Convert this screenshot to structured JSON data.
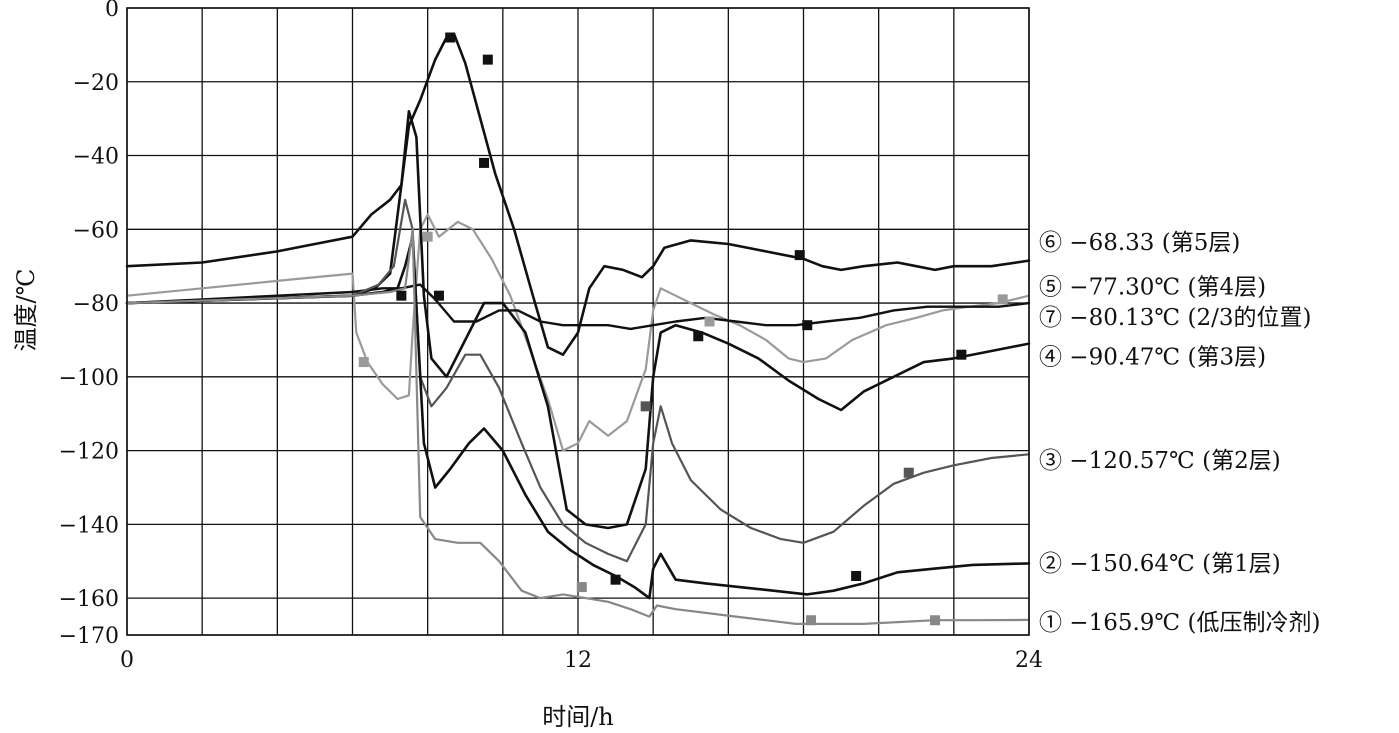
{
  "chart_data": {
    "type": "line",
    "xlabel": "时间/h",
    "ylabel": "温度/℃",
    "xlim": [
      0,
      24
    ],
    "ylim": [
      -170,
      0
    ],
    "x_ticks": [
      0,
      12,
      24
    ],
    "y_ticks": [
      0,
      -20,
      -40,
      -60,
      -80,
      -100,
      -120,
      -140,
      -160,
      -170
    ],
    "x_grid": [
      0,
      2,
      4,
      6,
      8,
      10,
      12,
      14,
      16,
      18,
      20,
      22,
      24
    ],
    "grid": true,
    "legend": "right",
    "series": [
      {
        "name": "⑥ −68.33    (第5层)",
        "color": "#111111",
        "width": 2.6,
        "points": [
          [
            0,
            -70
          ],
          [
            2,
            -69
          ],
          [
            4,
            -66
          ],
          [
            5,
            -64
          ],
          [
            6,
            -62
          ],
          [
            6.5,
            -56
          ],
          [
            7,
            -52
          ],
          [
            7.3,
            -48
          ],
          [
            7.5,
            -32
          ],
          [
            7.8,
            -25
          ],
          [
            8.2,
            -14
          ],
          [
            8.5,
            -8
          ],
          [
            8.7,
            -7
          ],
          [
            9,
            -15
          ],
          [
            9.4,
            -30
          ],
          [
            9.8,
            -45
          ],
          [
            10.3,
            -60
          ],
          [
            10.8,
            -78
          ],
          [
            11.2,
            -92
          ],
          [
            11.6,
            -94
          ],
          [
            12,
            -88
          ],
          [
            12.3,
            -76
          ],
          [
            12.7,
            -70
          ],
          [
            13.2,
            -71
          ],
          [
            13.7,
            -73
          ],
          [
            14,
            -70
          ],
          [
            14.3,
            -65
          ],
          [
            15,
            -63
          ],
          [
            16,
            -64
          ],
          [
            17,
            -66
          ],
          [
            18,
            -68
          ],
          [
            18.5,
            -70
          ],
          [
            19,
            -71
          ],
          [
            19.6,
            -70
          ],
          [
            20.5,
            -69
          ],
          [
            21,
            -70
          ],
          [
            21.5,
            -71
          ],
          [
            22,
            -70
          ],
          [
            23,
            -70
          ],
          [
            24,
            -68.5
          ]
        ]
      },
      {
        "name": "⑤ −77.30℃ (第4层)",
        "color": "#9a9a9a",
        "width": 2.2,
        "points": [
          [
            0,
            -78
          ],
          [
            2,
            -76
          ],
          [
            4,
            -74
          ],
          [
            6,
            -72
          ],
          [
            6.1,
            -88
          ],
          [
            6.4,
            -96
          ],
          [
            6.8,
            -102
          ],
          [
            7.2,
            -106
          ],
          [
            7.5,
            -105
          ],
          [
            7.6,
            -88
          ],
          [
            7.8,
            -60
          ],
          [
            8,
            -56
          ],
          [
            8.3,
            -62
          ],
          [
            8.8,
            -58
          ],
          [
            9.2,
            -60
          ],
          [
            9.7,
            -68
          ],
          [
            10.2,
            -78
          ],
          [
            10.7,
            -92
          ],
          [
            11.2,
            -106
          ],
          [
            11.6,
            -120
          ],
          [
            12,
            -118
          ],
          [
            12.3,
            -112
          ],
          [
            12.8,
            -116
          ],
          [
            13.3,
            -112
          ],
          [
            13.8,
            -98
          ],
          [
            14,
            -82
          ],
          [
            14.2,
            -76
          ],
          [
            14.6,
            -78
          ],
          [
            15,
            -80
          ],
          [
            15.6,
            -83
          ],
          [
            16.3,
            -86
          ],
          [
            17,
            -90
          ],
          [
            17.6,
            -95
          ],
          [
            18,
            -96
          ],
          [
            18.6,
            -95
          ],
          [
            19.3,
            -90
          ],
          [
            20.2,
            -86
          ],
          [
            21,
            -84
          ],
          [
            21.7,
            -82
          ],
          [
            22.4,
            -81
          ],
          [
            23.2,
            -80
          ],
          [
            24,
            -78
          ]
        ]
      },
      {
        "name": "⑦ −80.13℃ (2/3的位置)",
        "color": "#111111",
        "width": 2.4,
        "points": [
          [
            0,
            -80
          ],
          [
            2,
            -79
          ],
          [
            4,
            -78
          ],
          [
            6,
            -77
          ],
          [
            6.8,
            -76
          ],
          [
            7.3,
            -76
          ],
          [
            7.8,
            -75
          ],
          [
            8.2,
            -79
          ],
          [
            8.7,
            -85
          ],
          [
            9.3,
            -85
          ],
          [
            9.9,
            -82
          ],
          [
            10.4,
            -82
          ],
          [
            11,
            -85
          ],
          [
            11.6,
            -86
          ],
          [
            12.2,
            -86
          ],
          [
            12.8,
            -86
          ],
          [
            13.4,
            -87
          ],
          [
            14,
            -86
          ],
          [
            14.6,
            -85
          ],
          [
            15.4,
            -84
          ],
          [
            16.2,
            -85
          ],
          [
            17,
            -86
          ],
          [
            17.8,
            -86
          ],
          [
            18.6,
            -85
          ],
          [
            19.5,
            -84
          ],
          [
            20.4,
            -82
          ],
          [
            21.3,
            -81
          ],
          [
            22.3,
            -81
          ],
          [
            23.2,
            -81
          ],
          [
            24,
            -80
          ]
        ]
      },
      {
        "name": "④ −90.47℃ (第3层)",
        "color": "#111111",
        "width": 2.6,
        "points": [
          [
            0,
            -80
          ],
          [
            3,
            -79
          ],
          [
            6,
            -78
          ],
          [
            6.6,
            -76
          ],
          [
            7,
            -72
          ],
          [
            7.3,
            -48
          ],
          [
            7.5,
            -28
          ],
          [
            7.7,
            -35
          ],
          [
            7.9,
            -78
          ],
          [
            8.1,
            -95
          ],
          [
            8.5,
            -100
          ],
          [
            9,
            -90
          ],
          [
            9.5,
            -80
          ],
          [
            10,
            -80
          ],
          [
            10.6,
            -88
          ],
          [
            11.2,
            -108
          ],
          [
            11.7,
            -136
          ],
          [
            12.2,
            -140
          ],
          [
            12.8,
            -141
          ],
          [
            13.3,
            -140
          ],
          [
            13.8,
            -125
          ],
          [
            14,
            -100
          ],
          [
            14.2,
            -88
          ],
          [
            14.6,
            -86
          ],
          [
            15.3,
            -88
          ],
          [
            16,
            -91
          ],
          [
            16.8,
            -95
          ],
          [
            17.6,
            -101
          ],
          [
            18.4,
            -106
          ],
          [
            19,
            -109
          ],
          [
            19.6,
            -104
          ],
          [
            20.4,
            -100
          ],
          [
            21.2,
            -96
          ],
          [
            22,
            -95
          ],
          [
            23,
            -93
          ],
          [
            24,
            -91
          ]
        ]
      },
      {
        "name": "③ −120.57℃ (第2层)",
        "color": "#555555",
        "width": 2.2,
        "points": [
          [
            0,
            -80
          ],
          [
            3,
            -79
          ],
          [
            6,
            -78
          ],
          [
            6.7,
            -75
          ],
          [
            7.1,
            -70
          ],
          [
            7.4,
            -52
          ],
          [
            7.6,
            -60
          ],
          [
            7.8,
            -100
          ],
          [
            8.1,
            -108
          ],
          [
            8.5,
            -103
          ],
          [
            9,
            -94
          ],
          [
            9.4,
            -94
          ],
          [
            9.9,
            -103
          ],
          [
            10.5,
            -118
          ],
          [
            11,
            -130
          ],
          [
            11.6,
            -140
          ],
          [
            12.2,
            -145
          ],
          [
            12.8,
            -148
          ],
          [
            13.3,
            -150
          ],
          [
            13.8,
            -140
          ],
          [
            14,
            -118
          ],
          [
            14.2,
            -108
          ],
          [
            14.5,
            -118
          ],
          [
            15,
            -128
          ],
          [
            15.8,
            -136
          ],
          [
            16.6,
            -141
          ],
          [
            17.4,
            -144
          ],
          [
            18,
            -145
          ],
          [
            18.8,
            -142
          ],
          [
            19.6,
            -135
          ],
          [
            20.4,
            -129
          ],
          [
            21.2,
            -126
          ],
          [
            22,
            -124
          ],
          [
            23,
            -122
          ],
          [
            24,
            -121
          ]
        ]
      },
      {
        "name": "② −150.64℃ (第1层)",
        "color": "#111111",
        "width": 2.6,
        "points": [
          [
            0,
            -80
          ],
          [
            3,
            -79
          ],
          [
            6,
            -78
          ],
          [
            6.8,
            -77
          ],
          [
            7.2,
            -76
          ],
          [
            7.4,
            -70
          ],
          [
            7.6,
            -62
          ],
          [
            7.9,
            -118
          ],
          [
            8.2,
            -130
          ],
          [
            8.6,
            -125
          ],
          [
            9.1,
            -118
          ],
          [
            9.5,
            -114
          ],
          [
            10,
            -120
          ],
          [
            10.6,
            -132
          ],
          [
            11.2,
            -142
          ],
          [
            11.8,
            -147
          ],
          [
            12.4,
            -151
          ],
          [
            13,
            -154
          ],
          [
            13.5,
            -157
          ],
          [
            13.9,
            -160
          ],
          [
            14,
            -152
          ],
          [
            14.2,
            -148
          ],
          [
            14.6,
            -155
          ],
          [
            15.4,
            -156
          ],
          [
            16.3,
            -157
          ],
          [
            17.2,
            -158
          ],
          [
            18.1,
            -159
          ],
          [
            18.8,
            -158
          ],
          [
            19.6,
            -156
          ],
          [
            20.5,
            -153
          ],
          [
            21.5,
            -152
          ],
          [
            22.5,
            -151
          ],
          [
            24,
            -150.6
          ]
        ]
      },
      {
        "name": "① −165.9℃ (低压制冷剂)",
        "color": "#888888",
        "width": 2.2,
        "points": [
          [
            0,
            -80
          ],
          [
            3,
            -79
          ],
          [
            6,
            -78
          ],
          [
            7,
            -77
          ],
          [
            7.4,
            -76
          ],
          [
            7.6,
            -60
          ],
          [
            7.8,
            -138
          ],
          [
            8.2,
            -144
          ],
          [
            8.8,
            -145
          ],
          [
            9.4,
            -145
          ],
          [
            9.9,
            -150
          ],
          [
            10.5,
            -158
          ],
          [
            11,
            -160
          ],
          [
            11.6,
            -159
          ],
          [
            12.2,
            -160
          ],
          [
            12.8,
            -161
          ],
          [
            13.4,
            -163
          ],
          [
            13.9,
            -165
          ],
          [
            14.1,
            -162
          ],
          [
            14.6,
            -163
          ],
          [
            15.4,
            -164
          ],
          [
            16.2,
            -165
          ],
          [
            17,
            -166
          ],
          [
            17.8,
            -167
          ],
          [
            18.6,
            -167
          ],
          [
            19.6,
            -167
          ],
          [
            20.5,
            -166.5
          ],
          [
            21.5,
            -166
          ],
          [
            22.5,
            -166
          ],
          [
            24,
            -165.9
          ]
        ]
      }
    ],
    "markers": [
      {
        "series": 0,
        "x": 8.6,
        "y": -8
      },
      {
        "series": 0,
        "x": 9.6,
        "y": -14
      },
      {
        "series": 0,
        "x": 17.9,
        "y": -67
      },
      {
        "series": 1,
        "x": 6.3,
        "y": -96
      },
      {
        "series": 1,
        "x": 8,
        "y": -62
      },
      {
        "series": 1,
        "x": 15.5,
        "y": -85
      },
      {
        "series": 1,
        "x": 23.3,
        "y": -79
      },
      {
        "series": 2,
        "x": 7.3,
        "y": -78
      },
      {
        "series": 2,
        "x": 8.3,
        "y": -78
      },
      {
        "series": 2,
        "x": 18.1,
        "y": -86
      },
      {
        "series": 3,
        "x": 9.5,
        "y": -42
      },
      {
        "series": 3,
        "x": 15.2,
        "y": -89
      },
      {
        "series": 3,
        "x": 22.2,
        "y": -94
      },
      {
        "series": 4,
        "x": 13.8,
        "y": -108
      },
      {
        "series": 4,
        "x": 20.8,
        "y": -126
      },
      {
        "series": 5,
        "x": 13,
        "y": -155
      },
      {
        "series": 5,
        "x": 19.4,
        "y": -154
      },
      {
        "series": 6,
        "x": 12.1,
        "y": -157
      },
      {
        "series": 6,
        "x": 18.2,
        "y": -166
      },
      {
        "series": 6,
        "x": 21.5,
        "y": -166
      }
    ]
  }
}
